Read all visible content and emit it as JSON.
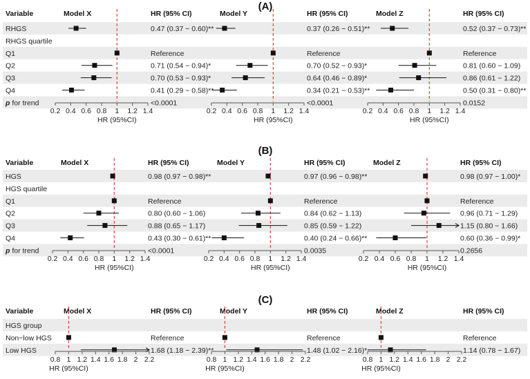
{
  "chart_data": [
    {
      "type": "forest",
      "panel_label": "(A)",
      "header": {
        "variable": "Variable",
        "hr": "HR (95% CI)"
      },
      "models": [
        "Model X",
        "Model Y",
        "Model Z"
      ],
      "xlim": [
        0.2,
        1.4
      ],
      "ticks": [
        "0.2",
        "0.4",
        "0.6",
        "0.8",
        "1",
        "1.2",
        "1.4"
      ],
      "tick_values": [
        0.2,
        0.4,
        0.6,
        0.8,
        1,
        1.2,
        1.4
      ],
      "reference_line": 1,
      "xlabel": "HR (95%CI)",
      "rows": [
        {
          "label": "RHGS",
          "bold": false,
          "cells": [
            {
              "hr": 0.47,
              "lo": 0.37,
              "hi": 0.6,
              "text": "0.47 (0.37 − 0.60)**"
            },
            {
              "hr": 0.37,
              "lo": 0.26,
              "hi": 0.51,
              "text": "0.37 (0.26 − 0.51)**"
            },
            {
              "hr": 0.52,
              "lo": 0.37,
              "hi": 0.73,
              "text": "0.52 (0.37 − 0.73)**"
            }
          ]
        },
        {
          "label": "RHGS quartile",
          "bold": false,
          "cells": [
            null,
            null,
            null
          ]
        },
        {
          "label": "Q1",
          "bold": false,
          "cells": [
            {
              "hr": 1,
              "lo": 1,
              "hi": 1,
              "text": "Reference"
            },
            {
              "hr": 1,
              "lo": 1,
              "hi": 1,
              "text": "Reference"
            },
            {
              "hr": 1,
              "lo": 1,
              "hi": 1,
              "text": "Reference"
            }
          ]
        },
        {
          "label": "Q2",
          "bold": false,
          "cells": [
            {
              "hr": 0.71,
              "lo": 0.54,
              "hi": 0.94,
              "text": "0.71 (0.54 − 0.94)*"
            },
            {
              "hr": 0.7,
              "lo": 0.52,
              "hi": 0.93,
              "text": "0.70 (0.52 − 0.93)*"
            },
            {
              "hr": 0.81,
              "lo": 0.6,
              "hi": 1.09,
              "text": "0.81 (0.60 − 1.09)"
            }
          ]
        },
        {
          "label": "Q3",
          "bold": false,
          "cells": [
            {
              "hr": 0.7,
              "lo": 0.53,
              "hi": 0.93,
              "text": "0.70 (0.53 − 0.93)*"
            },
            {
              "hr": 0.64,
              "lo": 0.46,
              "hi": 0.89,
              "text": "0.64 (0.46 − 0.89)*"
            },
            {
              "hr": 0.86,
              "lo": 0.61,
              "hi": 1.22,
              "text": "0.86 (0.61 − 1.22)"
            }
          ]
        },
        {
          "label": "Q4",
          "bold": false,
          "cells": [
            {
              "hr": 0.41,
              "lo": 0.29,
              "hi": 0.58,
              "text": "0.41 (0.29 − 0.58)**"
            },
            {
              "hr": 0.34,
              "lo": 0.21,
              "hi": 0.53,
              "text": "0.34 (0.21 − 0.53)**"
            },
            {
              "hr": 0.5,
              "lo": 0.31,
              "hi": 0.8,
              "text": "0.50 (0.31 − 0.80)**"
            }
          ]
        },
        {
          "label": "p",
          "label_suffix": " for trend",
          "bold": true,
          "cells": [
            {
              "text": "<0.0001"
            },
            {
              "text": "<0.0001"
            },
            {
              "text": "0.0152"
            }
          ]
        }
      ]
    },
    {
      "type": "forest",
      "panel_label": "(B)",
      "header": {
        "variable": "Variable",
        "hr": "HR (95% CI)"
      },
      "models": [
        "Model X",
        "Model Y",
        "Model Z"
      ],
      "xlim": [
        0.2,
        1.4
      ],
      "ticks": [
        "0.2",
        "0.4",
        "0.6",
        "0.8",
        "1",
        "1.2",
        "1.4"
      ],
      "tick_values": [
        0.2,
        0.4,
        0.6,
        0.8,
        1,
        1.2,
        1.4
      ],
      "reference_line": 1,
      "xlabel": "HR (95%CI)",
      "rows": [
        {
          "label": "HGS",
          "bold": false,
          "cells": [
            {
              "hr": 0.98,
              "lo": 0.97,
              "hi": 0.98,
              "text": "0.98 (0.97 − 0.98)**"
            },
            {
              "hr": 0.97,
              "lo": 0.96,
              "hi": 0.98,
              "text": "0.97 (0.96 − 0.98)**"
            },
            {
              "hr": 0.98,
              "lo": 0.97,
              "hi": 1.0,
              "text": "0.98 (0.97 − 1.00)*"
            }
          ]
        },
        {
          "label": "HGS quartile",
          "bold": false,
          "cells": [
            null,
            null,
            null
          ]
        },
        {
          "label": "Q1",
          "bold": false,
          "cells": [
            {
              "hr": 1,
              "lo": 1,
              "hi": 1,
              "text": "Reference"
            },
            {
              "hr": 1,
              "lo": 1,
              "hi": 1,
              "text": "Reference"
            },
            {
              "hr": 1,
              "lo": 1,
              "hi": 1,
              "text": "Reference"
            }
          ]
        },
        {
          "label": "Q2",
          "bold": false,
          "cells": [
            {
              "hr": 0.8,
              "lo": 0.6,
              "hi": 1.06,
              "text": "0.80 (0.60 − 1.06)"
            },
            {
              "hr": 0.84,
              "lo": 0.62,
              "hi": 1.13,
              "text": "0.84 (0.62 − 1.13)"
            },
            {
              "hr": 0.96,
              "lo": 0.71,
              "hi": 1.29,
              "text": "0.96 (0.71 − 1.29)"
            }
          ]
        },
        {
          "label": "Q3",
          "bold": false,
          "cells": [
            {
              "hr": 0.88,
              "lo": 0.65,
              "hi": 1.17,
              "text": "0.88 (0.65 − 1.17)"
            },
            {
              "hr": 0.85,
              "lo": 0.59,
              "hi": 1.22,
              "text": "0.85 (0.59 − 1.22)"
            },
            {
              "hr": 1.15,
              "lo": 0.8,
              "hi": 1.66,
              "text": "1.15 (0.80 − 1.66)"
            }
          ]
        },
        {
          "label": "Q4",
          "bold": false,
          "cells": [
            {
              "hr": 0.43,
              "lo": 0.3,
              "hi": 0.61,
              "text": "0.43 (0.30 − 0.61)**"
            },
            {
              "hr": 0.4,
              "lo": 0.24,
              "hi": 0.66,
              "text": "0.40 (0.24 − 0.66)**"
            },
            {
              "hr": 0.6,
              "lo": 0.36,
              "hi": 0.99,
              "text": "0.60 (0.36 − 0.99)*"
            }
          ]
        },
        {
          "label": "p",
          "label_suffix": " for trend",
          "bold": true,
          "cells": [
            {
              "text": "<0.0001"
            },
            {
              "text": "0.0035"
            },
            {
              "text": "0.2656"
            }
          ]
        }
      ]
    },
    {
      "type": "forest",
      "panel_label": "(C)",
      "header": {
        "variable": "Variable",
        "hr": "HR (95% CI)"
      },
      "models": [
        "Model X",
        "Model Y",
        "Model Z"
      ],
      "xlim": [
        0.8,
        2.2
      ],
      "ticks": [
        "0.8",
        "1",
        "1.2",
        "1.4",
        "1.6",
        "1.8",
        "2",
        "2.2"
      ],
      "tick_values": [
        0.8,
        1,
        1.2,
        1.4,
        1.6,
        1.8,
        2,
        2.2
      ],
      "reference_line": 1,
      "xlabel": "HR (95%CI)",
      "rows": [
        {
          "label": "HGS group",
          "bold": false,
          "cells": [
            null,
            null,
            null
          ]
        },
        {
          "label": "Non−low HGS",
          "bold": false,
          "cells": [
            {
              "hr": 1,
              "lo": 1,
              "hi": 1,
              "text": "Reference"
            },
            {
              "hr": 1,
              "lo": 1,
              "hi": 1,
              "text": "Reference"
            },
            {
              "hr": 1,
              "lo": 1,
              "hi": 1,
              "text": "Reference"
            }
          ]
        },
        {
          "label": "Low HGS",
          "bold": false,
          "cells": [
            {
              "hr": 1.68,
              "lo": 1.18,
              "hi": 2.39,
              "text": "1.68 (1.18 − 2.39)**"
            },
            {
              "hr": 1.48,
              "lo": 1.02,
              "hi": 2.16,
              "text": "1.48 (1.02 − 2.16)*"
            },
            {
              "hr": 1.14,
              "lo": 0.78,
              "hi": 1.67,
              "text": "1.14 (0.78 − 1.67)"
            }
          ]
        }
      ]
    }
  ]
}
